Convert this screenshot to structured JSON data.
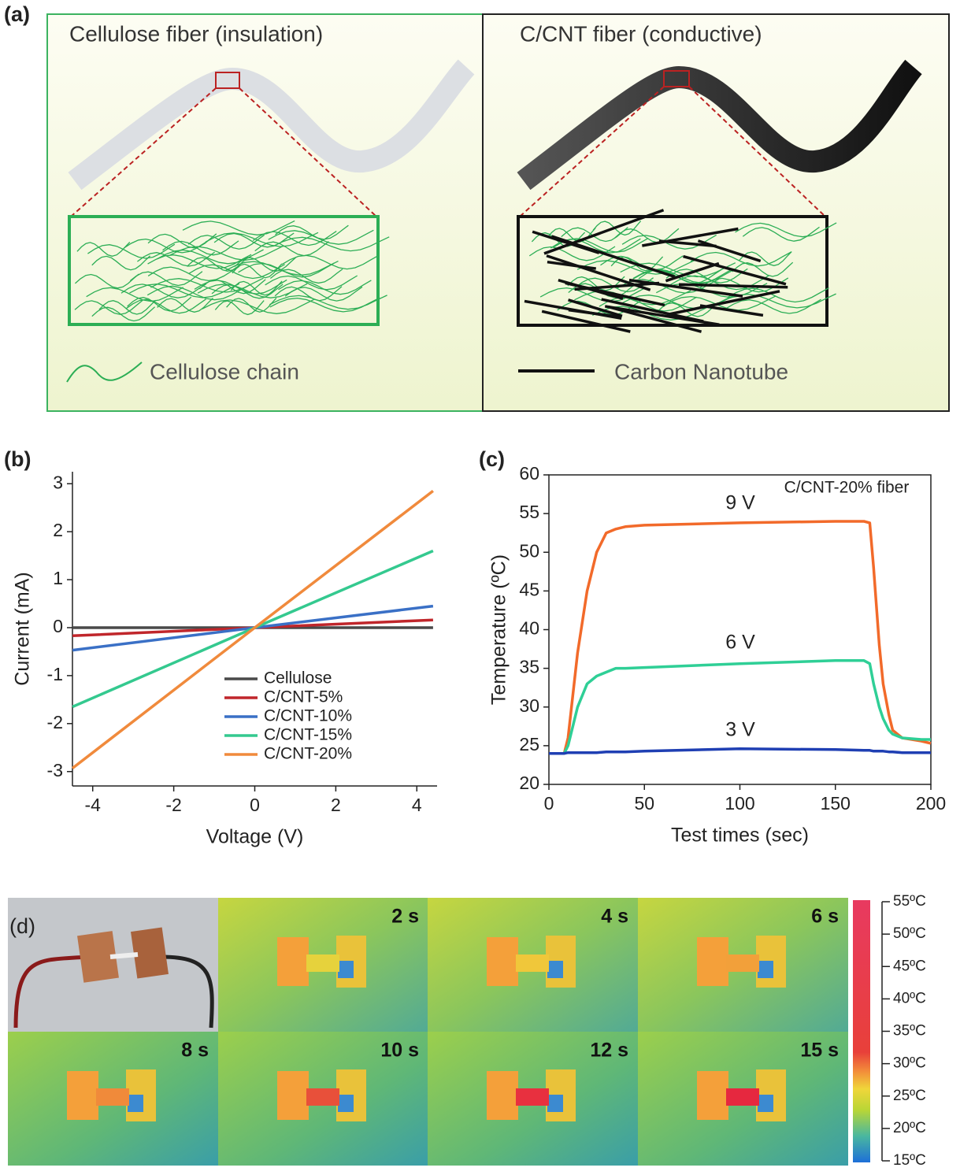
{
  "panel_labels": [
    "(a)",
    "(b)",
    "(c)",
    "(d)"
  ],
  "panel_a": {
    "left_title": "Cellulose fiber (insulation)",
    "right_title": "C/CNT fiber (conductive)",
    "legend": [
      "Cellulose chain",
      "Carbon Nanotube"
    ]
  },
  "chart_data": [
    {
      "type": "line",
      "xlabel": "Voltage (V)",
      "ylabel": "Current (mA)",
      "x": [
        -4.5,
        0,
        4.4
      ],
      "xlim": [
        -4.5,
        4.5
      ],
      "xticks": [
        -4,
        -2,
        0,
        2,
        4
      ],
      "ylim": [
        -3.3,
        3.25
      ],
      "yticks": [
        -3,
        -2,
        -1,
        0,
        1,
        2,
        3
      ],
      "legend": "lower center",
      "series": [
        {
          "name": "Cellulose",
          "color": "#4a4a4a",
          "values": [
            0,
            0,
            0
          ]
        },
        {
          "name": "C/CNT-5%",
          "color": "#c0262b",
          "values": [
            -0.17,
            0,
            0.16
          ]
        },
        {
          "name": "C/CNT-10%",
          "color": "#3a70c6",
          "values": [
            -0.47,
            0,
            0.45
          ]
        },
        {
          "name": "C/CNT-15%",
          "color": "#34c98f",
          "values": [
            -1.65,
            0,
            1.6
          ]
        },
        {
          "name": "C/CNT-20%",
          "color": "#f08a3c",
          "values": [
            -2.93,
            0,
            2.85
          ]
        }
      ]
    },
    {
      "type": "line",
      "xlabel": "Test times  (sec)",
      "ylabel": "Temperature (ºC)",
      "x": [
        0,
        8,
        10,
        15,
        20,
        25,
        30,
        35,
        40,
        50,
        100,
        150,
        165,
        168,
        170,
        173,
        175,
        178,
        180,
        185,
        190,
        195,
        200
      ],
      "xlim": [
        0,
        200
      ],
      "xticks": [
        0,
        50,
        100,
        150,
        200
      ],
      "ylim": [
        20,
        60
      ],
      "yticks": [
        20,
        25,
        30,
        35,
        40,
        45,
        50,
        55,
        60
      ],
      "annotations": [
        "9 V",
        "6 V",
        "3 V",
        "C/CNT-20% fiber"
      ],
      "series": [
        {
          "name": "9 V",
          "color": "#f26a2a",
          "values": [
            24,
            24,
            26,
            37,
            45,
            50,
            52.5,
            53,
            53.3,
            53.5,
            53.8,
            54,
            54,
            53.8,
            48,
            38,
            33,
            29,
            27,
            26,
            25.8,
            25.6,
            25.3
          ]
        },
        {
          "name": "6 V",
          "color": "#2fcf96",
          "values": [
            24,
            24,
            25,
            30,
            33,
            34,
            34.5,
            35,
            35,
            35.1,
            35.6,
            36,
            36,
            35.6,
            33,
            30,
            28.5,
            27,
            26.5,
            26,
            25.9,
            25.8,
            25.8
          ]
        },
        {
          "name": "3 V",
          "color": "#1f3fb3",
          "values": [
            24,
            24,
            24.1,
            24.1,
            24.1,
            24.1,
            24.2,
            24.2,
            24.2,
            24.3,
            24.6,
            24.5,
            24.4,
            24.4,
            24.3,
            24.3,
            24.3,
            24.2,
            24.2,
            24.1,
            24.1,
            24.1,
            24.1
          ]
        }
      ]
    }
  ],
  "panel_d": {
    "frames": [
      "2 s",
      "4 s",
      "6 s",
      "8 s",
      "10 s",
      "12 s",
      "15 s"
    ],
    "colorbar": {
      "lim": [
        15,
        55
      ],
      "ticks": [
        {
          "value": 55,
          "label": "55ºC"
        },
        {
          "value": 50,
          "label": "50ºC"
        },
        {
          "value": 45,
          "label": "45ºC"
        },
        {
          "value": 40,
          "label": "40ºC"
        },
        {
          "value": 35,
          "label": "35ºC"
        },
        {
          "value": 30,
          "label": "30ºC"
        },
        {
          "value": 25,
          "label": "25ºC"
        },
        {
          "value": 20,
          "label": "20ºC"
        },
        {
          "value": 15,
          "label": "15ºC"
        }
      ]
    }
  }
}
